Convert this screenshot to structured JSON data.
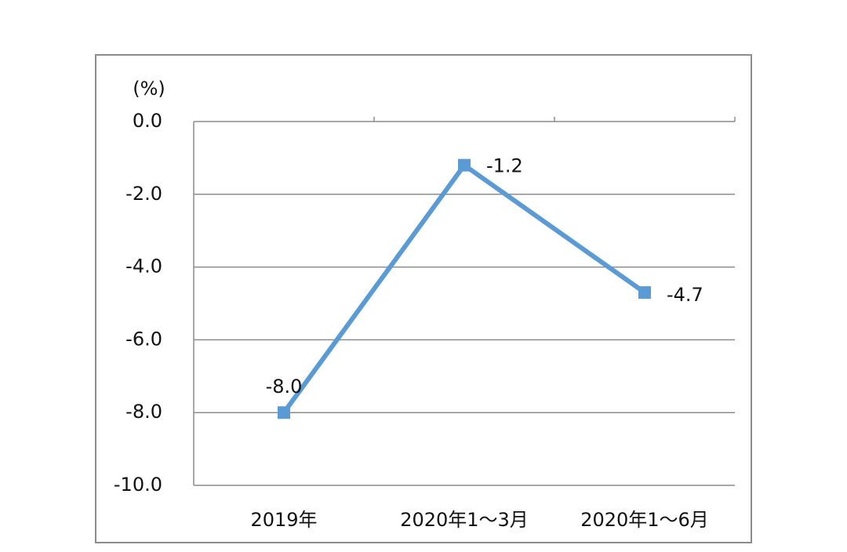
{
  "chart_data": {
    "type": "line",
    "y_label": "(%)",
    "categories": [
      "2019年",
      "2020年1～3月",
      "2020年1～6月"
    ],
    "values": [
      -8.0,
      -1.2,
      -4.7
    ],
    "value_labels": [
      "-8.0",
      "-1.2",
      "-4.7"
    ],
    "color": "#5b9bd5",
    "ylim": [
      -10,
      0
    ],
    "yticks": [
      {
        "value": 0,
        "label": "0.0"
      },
      {
        "value": -2,
        "label": "-2.0"
      },
      {
        "value": -4,
        "label": "-4.0"
      },
      {
        "value": -6,
        "label": "-6.0"
      },
      {
        "value": -8,
        "label": "-8.0"
      },
      {
        "value": -10,
        "label": "-10.0"
      }
    ],
    "grid": true
  }
}
